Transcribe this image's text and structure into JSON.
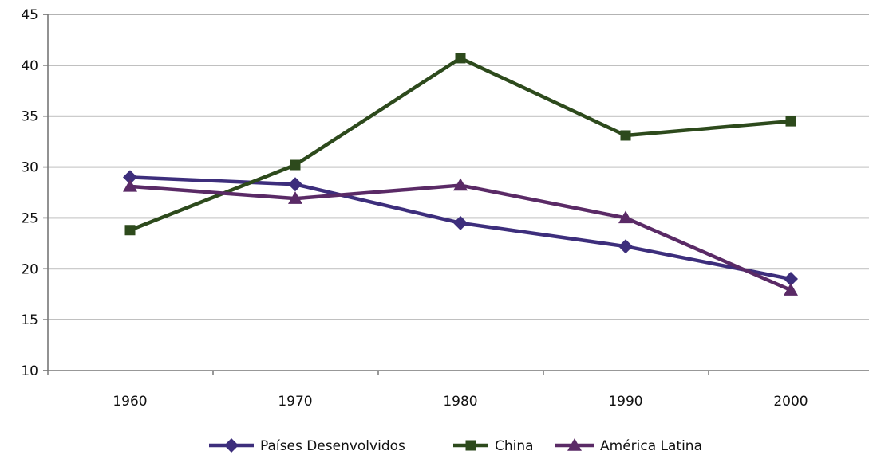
{
  "chart_data": {
    "type": "line",
    "title": "",
    "xlabel": "",
    "ylabel": "",
    "categories": [
      "1960",
      "1970",
      "1980",
      "1990",
      "2000"
    ],
    "ylim": [
      10,
      45
    ],
    "yticks": [
      10,
      15,
      20,
      25,
      30,
      35,
      40,
      45
    ],
    "grid": true,
    "legend_position": "bottom",
    "series": [
      {
        "name": "Países Desenvolvidos",
        "color": "#3d2e7c",
        "marker": "diamond",
        "values": [
          29.0,
          28.3,
          24.5,
          22.2,
          19.0
        ]
      },
      {
        "name": "China",
        "color": "#2d4a1c",
        "marker": "square",
        "values": [
          23.8,
          30.2,
          40.7,
          33.1,
          34.5
        ]
      },
      {
        "name": "América Latina",
        "color": "#5a2a66",
        "marker": "triangle",
        "values": [
          28.1,
          26.9,
          28.2,
          25.0,
          17.9
        ]
      }
    ]
  }
}
